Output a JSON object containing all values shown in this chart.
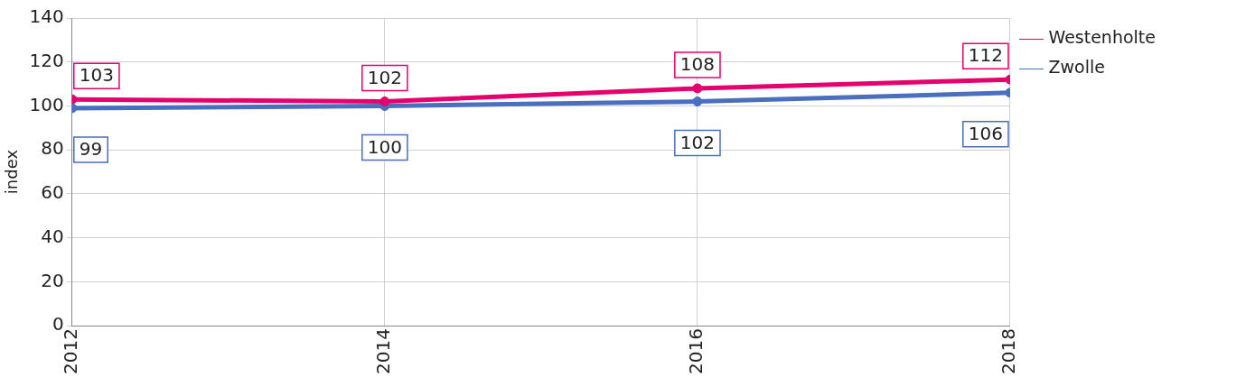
{
  "chart_data": {
    "type": "line",
    "ylabel": "index",
    "x": [
      2012,
      2014,
      2016,
      2018
    ],
    "xlim": [
      2012,
      2018
    ],
    "xticks": [
      2012,
      2014,
      2016,
      2018
    ],
    "ylim": [
      0,
      140
    ],
    "yticks": [
      0,
      20,
      40,
      60,
      80,
      100,
      120,
      140
    ],
    "series": [
      {
        "name": "Westenholte",
        "color": "#e5006e",
        "values": [
          103,
          102,
          108,
          112
        ]
      },
      {
        "name": "Zwolle",
        "color": "#4a6fbf",
        "values": [
          99,
          100,
          102,
          106
        ]
      }
    ],
    "grid": true,
    "legend": "top right",
    "marker": "circle",
    "line_style": "solid",
    "data_labels": true
  }
}
